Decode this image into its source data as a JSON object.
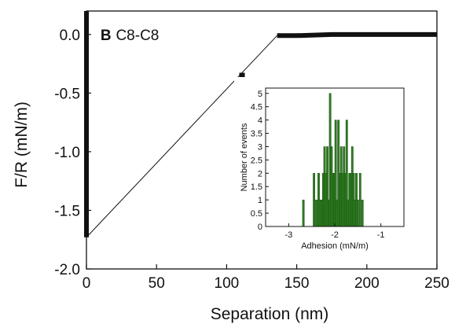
{
  "chart_data": [
    {
      "type": "line",
      "panel_label": "B",
      "title": "C8-C8",
      "xlabel": "Separation (nm)",
      "ylabel": "F/R (mN/m)",
      "xlim": [
        0,
        250
      ],
      "ylim": [
        -2.0,
        0.2
      ],
      "xticks": [
        0,
        50,
        100,
        150,
        200,
        250
      ],
      "yticks": [
        0.0,
        -0.5,
        -1.0,
        -1.5,
        -2.0
      ],
      "x_tick_labels": [
        "0",
        "50",
        "100",
        "150",
        "200",
        "250"
      ],
      "y_tick_labels": [
        "0.0",
        "-0.5",
        "-1.0",
        "-1.5",
        "-2.0"
      ],
      "series": [
        {
          "style": "thin-line",
          "x": [
            0,
            136
          ],
          "y": [
            -1.73,
            -0.01
          ]
        },
        {
          "style": "thick-line",
          "x": [
            136,
            150,
            175,
            200,
            225,
            250
          ],
          "y": [
            -0.01,
            -0.01,
            0.0,
            0.0,
            0.0,
            0.0
          ]
        },
        {
          "style": "thick-vertical",
          "x": [
            0,
            0
          ],
          "y": [
            -1.73,
            0.2
          ]
        },
        {
          "style": "marker",
          "x": [
            111
          ],
          "y": [
            -0.35
          ]
        }
      ],
      "grid": false,
      "legend": "none"
    },
    {
      "type": "bar",
      "inset": true,
      "title": "",
      "xlabel": "Adhesion (mN/m)",
      "ylabel": "Number of events",
      "xlim": [
        -3.5,
        -0.5
      ],
      "ylim": [
        0,
        5.2
      ],
      "x_tick_labels": [
        "-3",
        "-2",
        "-1"
      ],
      "xticks": [
        -3,
        -2,
        -1
      ],
      "y_tick_labels": [
        "0",
        "0.5",
        "1",
        "1.5",
        "2",
        "2.5",
        "3",
        "3.5",
        "4",
        "4.5",
        "5"
      ],
      "yticks": [
        0,
        0.5,
        1,
        1.5,
        2,
        2.5,
        3,
        3.5,
        4,
        4.5,
        5
      ],
      "bin_centers": [
        -2.68,
        -2.45,
        -2.4,
        -2.35,
        -2.32,
        -2.28,
        -2.25,
        -2.22,
        -2.19,
        -2.16,
        -2.13,
        -2.1,
        -2.07,
        -2.04,
        -2.01,
        -1.98,
        -1.95,
        -1.92,
        -1.89,
        -1.86,
        -1.83,
        -1.8,
        -1.77,
        -1.74,
        -1.71,
        -1.68,
        -1.65,
        -1.62,
        -1.59,
        -1.56,
        -1.53,
        -1.5,
        -1.45,
        -1.4
      ],
      "values": [
        1,
        2,
        1,
        2,
        1,
        1,
        2,
        3,
        2,
        3,
        1,
        5,
        3,
        2,
        2,
        4,
        1,
        4,
        2,
        3,
        2,
        3,
        2,
        4,
        1,
        2,
        2,
        3,
        2,
        1,
        2,
        1,
        2,
        1
      ],
      "bar_color": "#2e7d1f",
      "bar_edge_color": "#0f3d0a"
    }
  ]
}
